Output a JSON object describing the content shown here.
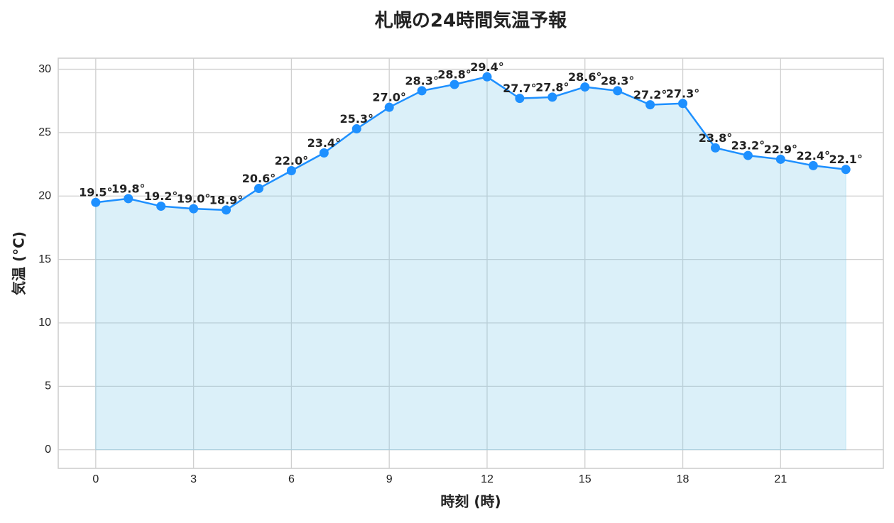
{
  "chart_data": {
    "type": "line",
    "title": "札幌の24時間気温予報",
    "x_label": "時刻 (時)",
    "y_label": "気温 (°C)",
    "x": [
      0,
      1,
      2,
      3,
      4,
      5,
      6,
      7,
      8,
      9,
      10,
      11,
      12,
      13,
      14,
      15,
      16,
      17,
      18,
      19,
      20,
      21,
      22,
      23
    ],
    "series": [
      {
        "name": "気温",
        "color": "#1e90ff",
        "fill_color": "#87ceeb",
        "values": [
          19.5,
          19.8,
          19.2,
          19.0,
          18.9,
          20.6,
          22.0,
          23.4,
          25.3,
          27.0,
          28.3,
          28.8,
          29.4,
          27.7,
          27.8,
          28.6,
          28.3,
          27.2,
          27.3,
          23.8,
          23.2,
          22.9,
          22.4,
          22.1
        ],
        "value_labels": [
          "19.5°",
          "19.8°",
          "19.2°",
          "19.0°",
          "18.9°",
          "20.6°",
          "22.0°",
          "23.4°",
          "25.3°",
          "27.0°",
          "28.3°",
          "28.8°",
          "29.4°",
          "27.7°",
          "27.8°",
          "28.6°",
          "28.3°",
          "27.2°",
          "27.3°",
          "23.8°",
          "23.2°",
          "22.9°",
          "22.4°",
          "22.1°"
        ]
      }
    ],
    "xlim": [
      -1.15,
      24.15
    ],
    "ylim": [
      -1.47,
      30.87
    ],
    "xticks": [
      0,
      3,
      6,
      9,
      12,
      15,
      18,
      21
    ],
    "yticks": [
      0,
      5,
      10,
      15,
      20,
      25,
      30
    ],
    "grid": true
  }
}
